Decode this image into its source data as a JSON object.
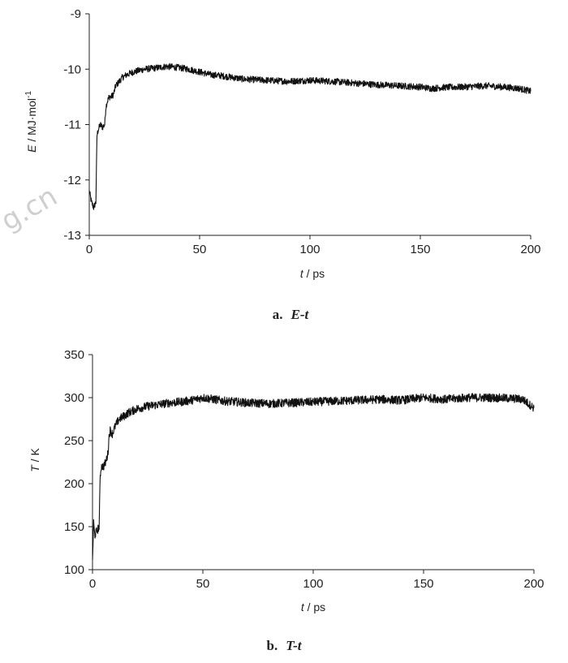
{
  "watermark": "g.cn",
  "chart_data": [
    {
      "type": "line",
      "caption_letter": "a.",
      "caption_text": "E-t",
      "ylabel_symbol": "E",
      "ylabel_unit": " / MJ·mol",
      "ylabel_sup": "-1",
      "xlabel_symbol": "t",
      "xlabel_unit": " / ps",
      "xlim": [
        0,
        200
      ],
      "ylim": [
        -13,
        -9
      ],
      "xticks": [
        "0",
        "50",
        "100",
        "150",
        "200"
      ],
      "yticks": [
        "-13",
        "-12",
        "-11",
        "-10",
        "-9"
      ],
      "series": [
        {
          "color": "#111111",
          "x": [
            0,
            1,
            2,
            3,
            3.5,
            4,
            5,
            6,
            7,
            7.5,
            8,
            9,
            10,
            11,
            12,
            13,
            14,
            15,
            17,
            20,
            25,
            30,
            35,
            40,
            45,
            50,
            55,
            60,
            70,
            80,
            90,
            100,
            110,
            120,
            130,
            140,
            150,
            155,
            160,
            170,
            180,
            190,
            195,
            200
          ],
          "y": [
            -12.2,
            -12.4,
            -12.5,
            -12.4,
            -11.2,
            -11.1,
            -11.0,
            -11.05,
            -11.0,
            -10.7,
            -10.6,
            -10.5,
            -10.5,
            -10.45,
            -10.3,
            -10.25,
            -10.2,
            -10.15,
            -10.1,
            -10.05,
            -10.0,
            -9.98,
            -9.95,
            -9.97,
            -10.0,
            -10.05,
            -10.1,
            -10.12,
            -10.18,
            -10.2,
            -10.22,
            -10.2,
            -10.22,
            -10.25,
            -10.28,
            -10.3,
            -10.32,
            -10.35,
            -10.33,
            -10.32,
            -10.3,
            -10.33,
            -10.35,
            -10.4
          ]
        }
      ],
      "noise_amp": 0.06
    },
    {
      "type": "line",
      "caption_letter": "b.",
      "caption_text": "T-t",
      "ylabel_symbol": "T",
      "ylabel_unit": " / K",
      "ylabel_sup": "",
      "xlabel_symbol": "t",
      "xlabel_unit": " / ps",
      "xlim": [
        0,
        200
      ],
      "ylim": [
        100,
        350
      ],
      "xticks": [
        "0",
        "50",
        "100",
        "150",
        "200"
      ],
      "yticks": [
        "100",
        "150",
        "200",
        "250",
        "300",
        "350"
      ],
      "series": [
        {
          "color": "#111111",
          "x": [
            0,
            0.5,
            1,
            2,
            3,
            3.5,
            4,
            5,
            6,
            7,
            7.5,
            8,
            9,
            10,
            11,
            12,
            14,
            16,
            20,
            25,
            30,
            35,
            40,
            45,
            50,
            55,
            60,
            70,
            80,
            90,
            100,
            110,
            120,
            130,
            140,
            150,
            160,
            170,
            180,
            190,
            195,
            200
          ],
          "y": [
            110,
            155,
            140,
            145,
            150,
            210,
            220,
            220,
            225,
            235,
            255,
            262,
            258,
            265,
            270,
            275,
            278,
            282,
            287,
            290,
            292,
            294,
            295,
            297,
            300,
            298,
            296,
            294,
            293,
            294,
            295,
            296,
            297,
            298,
            297,
            300,
            298,
            300,
            300,
            299,
            298,
            288
          ]
        }
      ],
      "noise_amp": 5
    }
  ]
}
